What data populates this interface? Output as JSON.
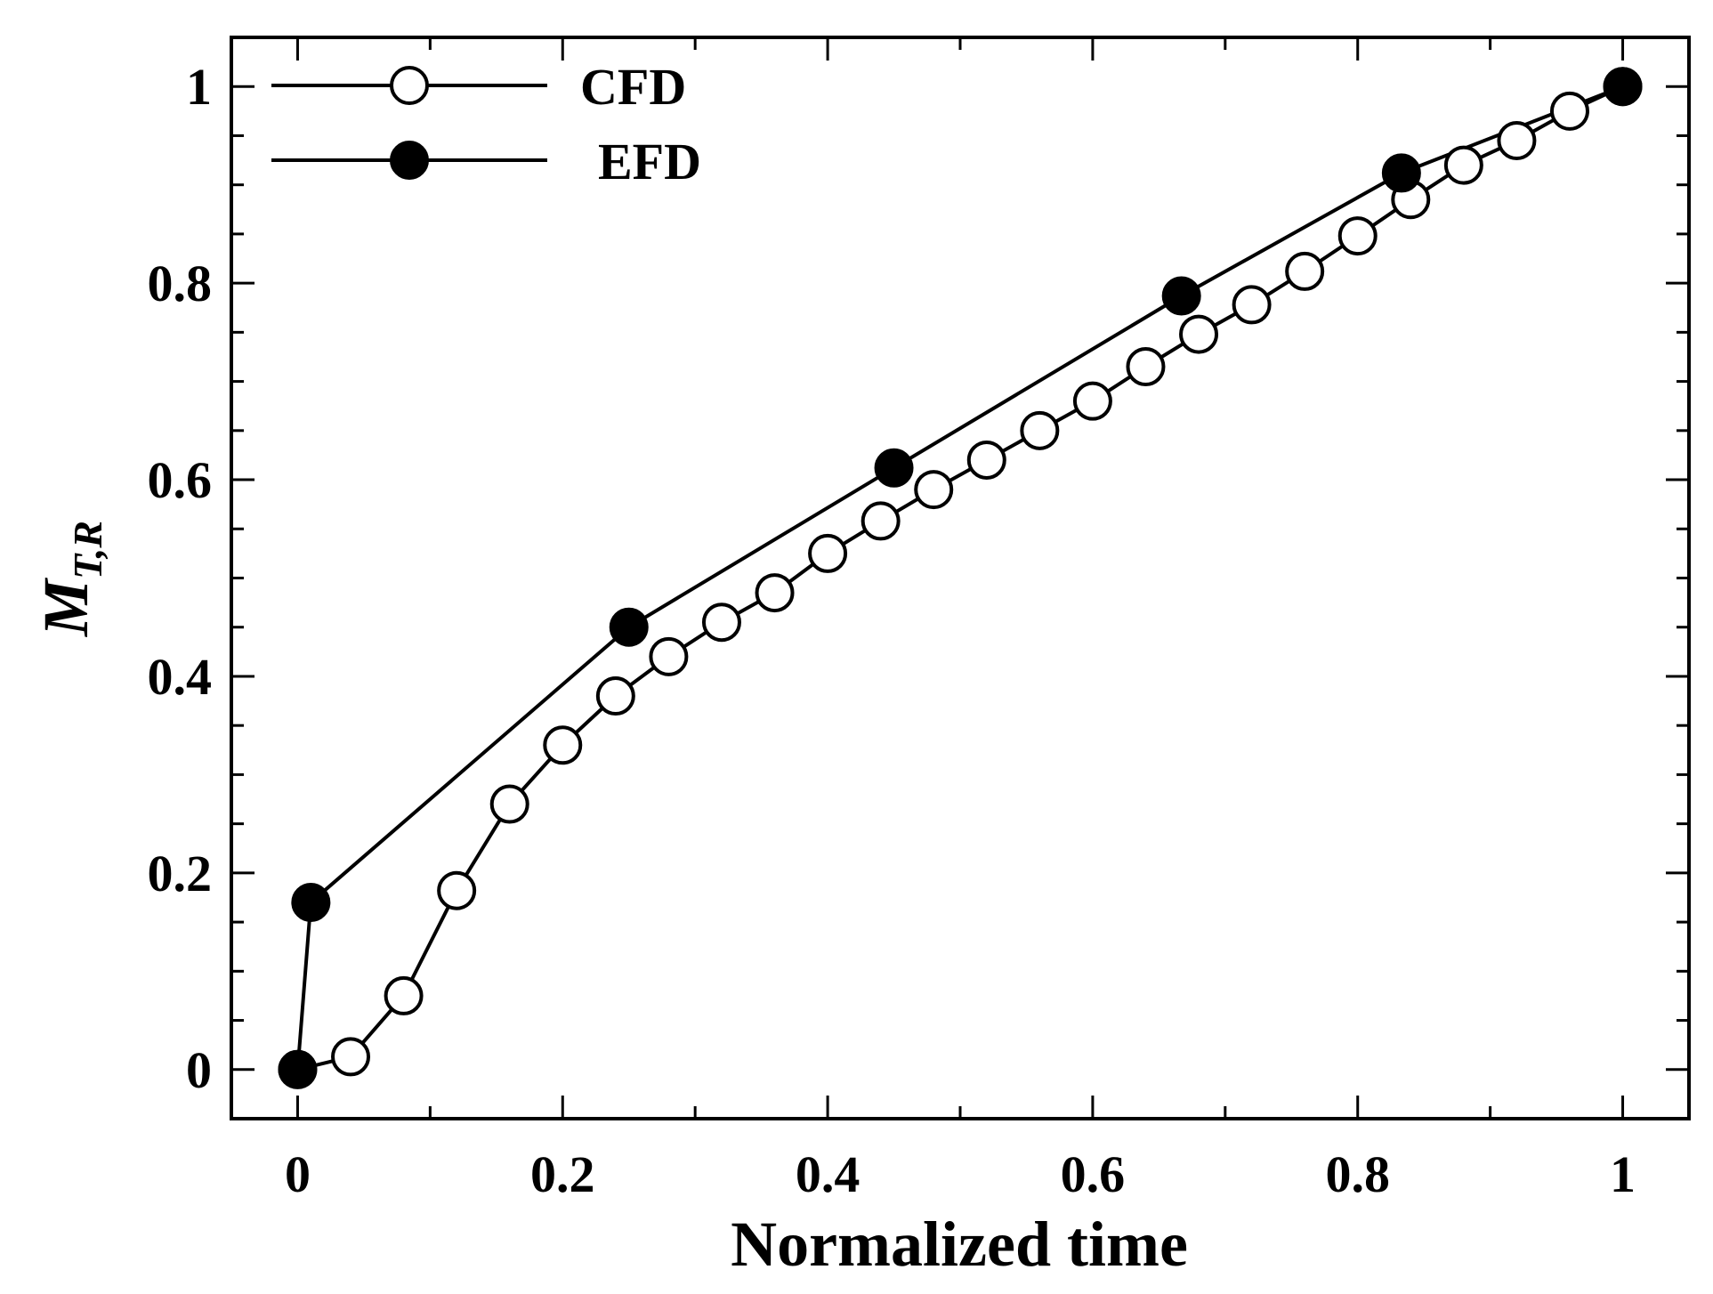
{
  "chart_data": {
    "type": "line",
    "title": "",
    "xlabel": "Normalized time",
    "ylabel": {
      "main": "M",
      "subscript": "T,R"
    },
    "xlim": [
      -0.05,
      1.05
    ],
    "ylim": [
      -0.05,
      1.05
    ],
    "grid": false,
    "legend_position": "top-left",
    "x_ticks": [
      0,
      0.2,
      0.4,
      0.6,
      0.8,
      1
    ],
    "x_tick_labels": [
      "0",
      "0.2",
      "0.4",
      "0.6",
      "0.8",
      "1"
    ],
    "x_minor_ticks": [
      0.1,
      0.3,
      0.5,
      0.7,
      0.9
    ],
    "y_ticks": [
      0,
      0.2,
      0.4,
      0.6,
      0.8,
      1
    ],
    "y_tick_labels": [
      "0",
      "0.2",
      "0.4",
      "0.6",
      "0.8",
      "1"
    ],
    "y_minor_ticks": [
      0.05,
      0.1,
      0.15,
      0.25,
      0.3,
      0.35,
      0.45,
      0.5,
      0.55,
      0.65,
      0.7,
      0.75,
      0.85,
      0.9,
      0.95
    ],
    "series": [
      {
        "name": "CFD",
        "marker": "open-circle",
        "color": "#000000",
        "x": [
          0,
          0.04,
          0.08,
          0.12,
          0.16,
          0.2,
          0.24,
          0.28,
          0.32,
          0.36,
          0.4,
          0.44,
          0.48,
          0.52,
          0.56,
          0.6,
          0.64,
          0.68,
          0.72,
          0.76,
          0.8,
          0.84,
          0.88,
          0.92,
          0.96,
          1
        ],
        "y": [
          0,
          0.013,
          0.075,
          0.182,
          0.27,
          0.33,
          0.38,
          0.42,
          0.455,
          0.485,
          0.525,
          0.558,
          0.59,
          0.62,
          0.65,
          0.68,
          0.715,
          0.748,
          0.778,
          0.812,
          0.848,
          0.885,
          0.92,
          0.945,
          0.975,
          1.0
        ]
      },
      {
        "name": "EFD",
        "marker": "filled-circle",
        "color": "#000000",
        "x": [
          0,
          0.01,
          0.25,
          0.45,
          0.667,
          0.833,
          1
        ],
        "y": [
          0,
          0.17,
          0.45,
          0.612,
          0.787,
          0.912,
          1.0
        ]
      }
    ]
  }
}
